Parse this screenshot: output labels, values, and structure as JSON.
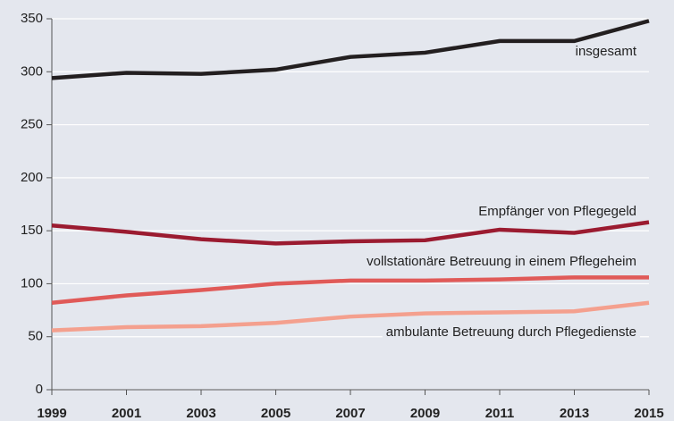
{
  "chart_data": {
    "type": "line",
    "x": [
      1999,
      2001,
      2003,
      2005,
      2007,
      2009,
      2011,
      2013,
      2015
    ],
    "xlim": [
      1999,
      2015
    ],
    "xticks": [
      1999,
      2001,
      2003,
      2005,
      2007,
      2009,
      2011,
      2013,
      2015
    ],
    "ylim": [
      0,
      350
    ],
    "yticks": [
      0,
      50,
      100,
      150,
      200,
      250,
      300,
      350
    ],
    "grid": true,
    "series": [
      {
        "name": "insgesamt",
        "color": "#231f20",
        "values": [
          294,
          299,
          298,
          302,
          314,
          318,
          329,
          329,
          348
        ]
      },
      {
        "name": "Empfänger von Pflegegeld",
        "color": "#9b1b30",
        "values": [
          155,
          149,
          142,
          138,
          140,
          141,
          151,
          148,
          158
        ]
      },
      {
        "name": "vollstationäre Betreuung in einem Pflegeheim",
        "color": "#e05a58",
        "values": [
          82,
          89,
          94,
          100,
          103,
          103,
          104,
          106,
          106
        ]
      },
      {
        "name": "ambulante Betreuung durch Pflegedienste",
        "color": "#f4a08e",
        "values": [
          56,
          59,
          60,
          63,
          69,
          72,
          73,
          74,
          82
        ]
      }
    ]
  }
}
